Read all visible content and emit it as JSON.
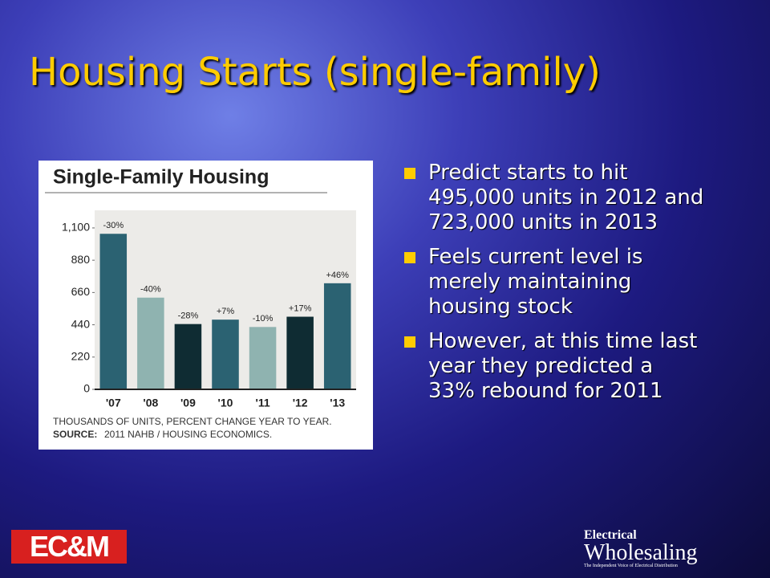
{
  "slide": {
    "title": "Housing Starts (single-family)",
    "bullets": [
      "Predict starts to hit 495,000 units in 2012 and 723,000 units in 2013",
      "Feels current level is merely maintaining housing stock",
      "However, at this time last year they predicted a 33% rebound for 2011"
    ],
    "logo_left": "EC&M",
    "logo_right_top": "Electrical",
    "logo_right_main": "Wholesaling",
    "logo_right_tagline": "The Independent Voice of Electrical Distribution"
  },
  "chart_data": {
    "type": "bar",
    "title": "Single-Family Housing",
    "categories": [
      "'07",
      "'08",
      "'09",
      "'10",
      "'11",
      "'12",
      "'13"
    ],
    "values": [
      1060,
      625,
      445,
      475,
      425,
      495,
      723
    ],
    "annotations": [
      "-30%",
      "-40%",
      "-28%",
      "+7%",
      "-10%",
      "+17%",
      "+46%"
    ],
    "colors": [
      "#2b6272",
      "#8fb3b0",
      "#0f2c33",
      "#2b6272",
      "#8fb3b0",
      "#0f2c33",
      "#2b6272"
    ],
    "ylim": [
      0,
      1220
    ],
    "yticks": [
      0,
      220,
      440,
      660,
      880,
      {
        "value": 1100,
        "label": "1,100"
      }
    ],
    "grid": false,
    "note": "THOUSANDS OF UNITS, PERCENT CHANGE YEAR TO YEAR.",
    "source_label": "SOURCE:",
    "source": "2011 NAHB / HOUSING ECONOMICS."
  }
}
